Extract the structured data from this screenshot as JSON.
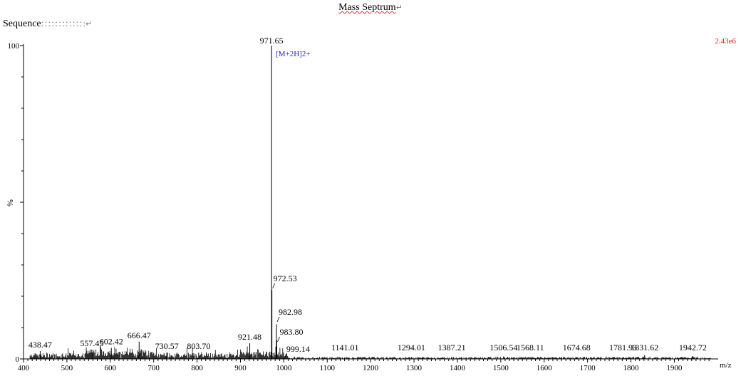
{
  "document": {
    "title": "Mass Septrum",
    "paragraph_mark": "↵",
    "sequence_label": "Sequence",
    "sequence_value": "::::::::::::",
    "sequence_tail": ":↵"
  },
  "chart_data": {
    "type": "bar",
    "subtype": "mass-spectrum",
    "xlabel": "m/z",
    "ylabel": "%",
    "intensity_label": "2.43e6",
    "intensity_color": "#e02020",
    "annotation_color": "#2020d0",
    "xlim": [
      400,
      1990
    ],
    "ylim": [
      0,
      100
    ],
    "x_ticks": [
      400,
      500,
      600,
      700,
      800,
      900,
      1000,
      1100,
      1200,
      1300,
      1400,
      1500,
      1600,
      1700,
      1800,
      1900
    ],
    "y_ticks": [
      0,
      100
    ],
    "peaks": [
      {
        "mz": 438.47,
        "intensity": 2.5,
        "label": "438.47"
      },
      {
        "mz": 557.45,
        "intensity": 3.0,
        "label": "557.45"
      },
      {
        "mz": 602.42,
        "intensity": 3.5,
        "label": "602.42"
      },
      {
        "mz": 666.47,
        "intensity": 5.5,
        "label": "666.47"
      },
      {
        "mz": 730.57,
        "intensity": 2.0,
        "label": "730.57"
      },
      {
        "mz": 803.7,
        "intensity": 2.0,
        "label": "803.70"
      },
      {
        "mz": 921.48,
        "intensity": 5.0,
        "label": "921.48"
      },
      {
        "mz": 971.65,
        "intensity": 100,
        "label": "971.65",
        "annotation": "[M+2H]2+"
      },
      {
        "mz": 972.53,
        "intensity": 22,
        "label": "972.53"
      },
      {
        "mz": 982.98,
        "intensity": 11,
        "label": "982.98"
      },
      {
        "mz": 983.8,
        "intensity": 6,
        "label": "983.80"
      },
      {
        "mz": 999.14,
        "intensity": 2.0,
        "label": "999.14"
      },
      {
        "mz": 1141.01,
        "intensity": 0.5,
        "label": "1141.01"
      },
      {
        "mz": 1294.01,
        "intensity": 0.6,
        "label": "1294.01"
      },
      {
        "mz": 1387.21,
        "intensity": 0.6,
        "label": "1387.21"
      },
      {
        "mz": 1506.54,
        "intensity": 0.8,
        "label": "1506.54"
      },
      {
        "mz": 1568.11,
        "intensity": 0.5,
        "label": "1568.11"
      },
      {
        "mz": 1674.68,
        "intensity": 0.5,
        "label": "1674.68"
      },
      {
        "mz": 1781.93,
        "intensity": 0.5,
        "label": "1781.93"
      },
      {
        "mz": 1831.62,
        "intensity": 1.2,
        "label": "1831.62"
      },
      {
        "mz": 1942.72,
        "intensity": 0.9,
        "label": "1942.72"
      }
    ]
  }
}
